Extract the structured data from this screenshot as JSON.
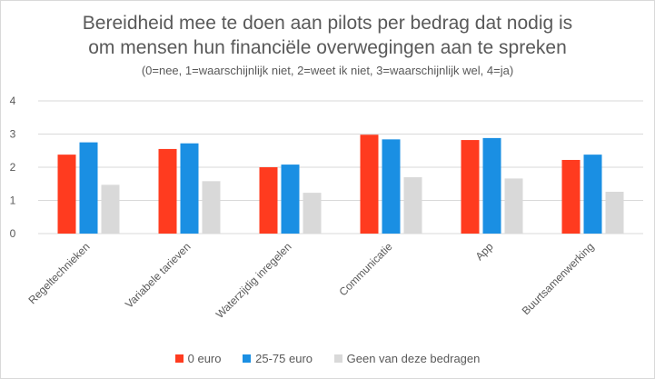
{
  "title_line1": "Bereidheid mee te doen aan pilots per bedrag dat nodig is",
  "title_line2": "om mensen hun financiële overwegingen aan te spreken",
  "subtitle": "(0=nee, 1=waarschijnlijk niet, 2=weet ik niet, 3=waarschijnlijk wel, 4=ja)",
  "colors": {
    "series0": "#ff3b1f",
    "series1": "#1a8fe3",
    "series2": "#d9d9d9",
    "grid": "#d9d9d9"
  },
  "chart_data": {
    "type": "bar",
    "title": "Bereidheid mee te doen aan pilots per bedrag dat nodig is om mensen hun financiële overwegingen aan te spreken",
    "subtitle": "(0=nee, 1=waarschijnlijk niet, 2=weet ik niet, 3=waarschijnlijk wel, 4=ja)",
    "categories": [
      "Regeltechnieken",
      "Variabele tarieven",
      "Waterzijdig inregelen",
      "Communicatie",
      "App",
      "Buurtsamenwerking"
    ],
    "series": [
      {
        "name": "0 euro",
        "values": [
          2.38,
          2.55,
          2.0,
          2.98,
          2.82,
          2.22
        ]
      },
      {
        "name": "25-75 euro",
        "values": [
          2.75,
          2.72,
          2.08,
          2.84,
          2.88,
          2.38
        ]
      },
      {
        "name": "Geen van deze bedragen",
        "values": [
          1.47,
          1.58,
          1.23,
          1.7,
          1.66,
          1.26
        ]
      }
    ],
    "yticks": [
      "0",
      "1",
      "2",
      "3",
      "4"
    ],
    "ylim": [
      0,
      4
    ],
    "xlabel": "",
    "ylabel": "",
    "grid": true,
    "legend_position": "bottom"
  }
}
